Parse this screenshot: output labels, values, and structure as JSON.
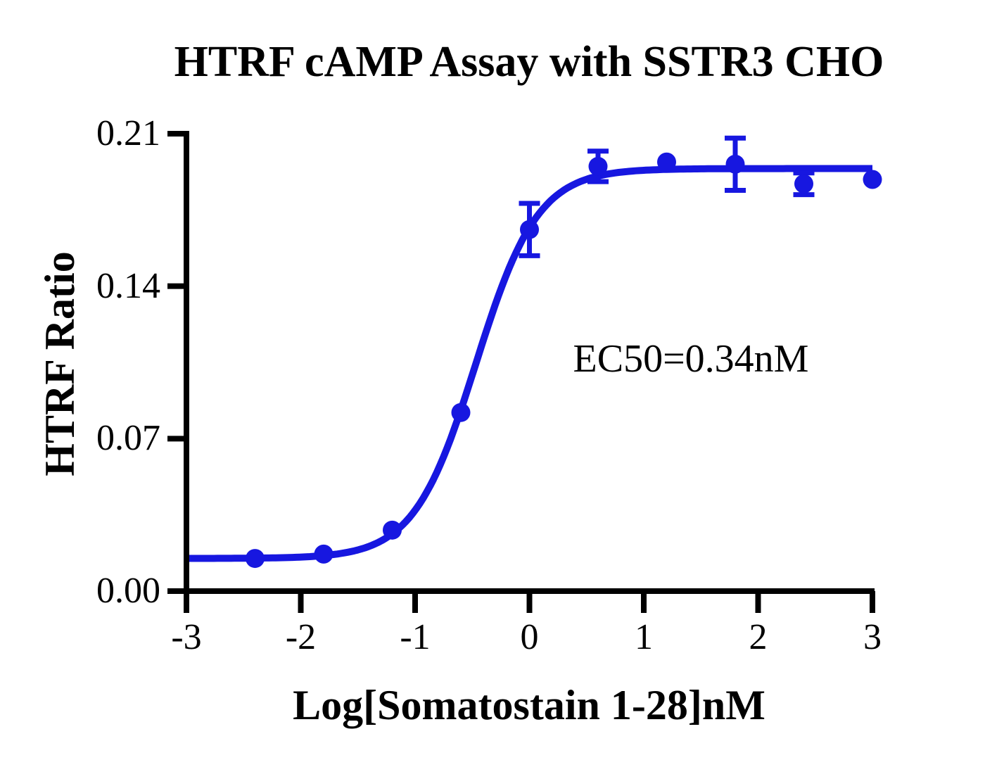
{
  "figure": {
    "background": "#ffffff",
    "text_color": "#000000",
    "axis_color": "#000000"
  },
  "chart_data": {
    "type": "scatter",
    "title": "HTRF cAMP Assay with SSTR3 CHO",
    "xlabel": "Log[Somatostain 1-28]nM",
    "ylabel": "HTRF Ratio",
    "annotation": "EC50=0.34nM",
    "xlim": [
      -3,
      3
    ],
    "ylim": [
      0,
      0.21
    ],
    "xticks": [
      -3,
      -2,
      -1,
      0,
      1,
      2,
      3
    ],
    "xtick_labels": [
      "-3",
      "-2",
      "-1",
      "0",
      "1",
      "2",
      "3"
    ],
    "yticks": [
      0,
      0.07,
      0.14,
      0.21
    ],
    "ytick_labels": [
      "0.00",
      "0.07",
      "0.14",
      "0.21"
    ],
    "grid": false,
    "legend": "none",
    "series": [
      {
        "name": "Somatostain 1-28",
        "color": "#1717e0",
        "marker": "circle",
        "points": [
          {
            "x": -2.4,
            "y": 0.015,
            "sem": 0
          },
          {
            "x": -1.8,
            "y": 0.017,
            "sem": 0
          },
          {
            "x": -1.2,
            "y": 0.028,
            "sem": 0
          },
          {
            "x": -0.6,
            "y": 0.082,
            "sem": 0
          },
          {
            "x": 0.0,
            "y": 0.166,
            "sem": 0.012
          },
          {
            "x": 0.6,
            "y": 0.195,
            "sem": 0.007
          },
          {
            "x": 1.2,
            "y": 0.197,
            "sem": 0
          },
          {
            "x": 1.8,
            "y": 0.196,
            "sem": 0.012
          },
          {
            "x": 2.4,
            "y": 0.187,
            "sem": 0.005
          },
          {
            "x": 3.0,
            "y": 0.189,
            "sem": 0
          }
        ],
        "fit": {
          "model": "4PL",
          "bottom": 0.015,
          "top": 0.194,
          "logEC50": -0.468,
          "hillslope": 1.6,
          "ec50_nM": 0.34
        }
      }
    ]
  }
}
